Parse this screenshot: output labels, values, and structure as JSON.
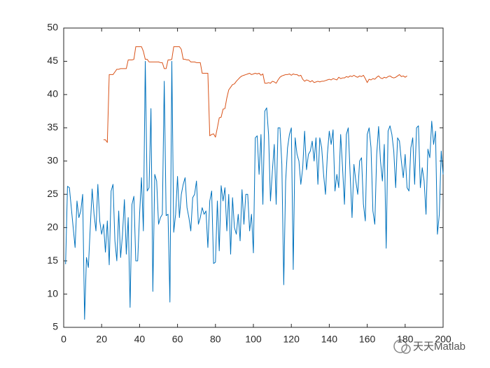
{
  "chart_data": {
    "type": "line",
    "watermark": "天天Matlab",
    "xlim": [
      0,
      200
    ],
    "xticks": [
      0,
      20,
      40,
      60,
      80,
      100,
      120,
      140,
      160,
      180,
      200
    ],
    "ylim": [
      5,
      50
    ],
    "yticks": [
      5,
      10,
      15,
      20,
      25,
      30,
      35,
      40,
      45,
      50
    ],
    "series": [
      {
        "color": "#0072BD",
        "x": [
          1,
          2,
          3,
          4,
          5,
          6,
          7,
          8,
          9,
          10,
          11,
          12,
          13,
          14,
          15,
          16,
          17,
          18,
          19,
          20,
          21,
          22,
          23,
          24,
          25,
          26,
          27,
          28,
          29,
          30,
          31,
          32,
          33,
          34,
          35,
          36,
          37,
          38,
          39,
          40,
          41,
          42,
          43,
          44,
          45,
          46,
          47,
          48,
          49,
          50,
          51,
          52,
          53,
          54,
          55,
          56,
          57,
          58,
          59,
          60,
          61,
          62,
          63,
          64,
          65,
          66,
          67,
          68,
          69,
          70,
          71,
          72,
          73,
          74,
          75,
          76,
          77,
          78,
          79,
          80,
          81,
          82,
          83,
          84,
          85,
          86,
          87,
          88,
          89,
          90,
          91,
          92,
          93,
          94,
          95,
          96,
          97,
          98,
          99,
          100,
          101,
          102,
          103,
          104,
          105,
          106,
          107,
          108,
          109,
          110,
          111,
          112,
          113,
          114,
          115,
          116,
          117,
          118,
          119,
          120,
          121,
          122,
          123,
          124,
          125,
          126,
          127,
          128,
          129,
          130,
          131,
          132,
          133,
          134,
          135,
          136,
          137,
          138,
          139,
          140,
          141,
          142,
          143,
          144,
          145,
          146,
          147,
          148,
          149,
          150,
          151,
          152,
          153,
          154,
          155,
          156,
          157,
          158,
          159,
          160,
          161,
          162,
          163,
          164,
          165,
          166,
          167,
          168,
          169,
          170,
          171,
          172,
          173,
          174,
          175,
          176,
          177,
          178,
          179,
          180,
          181,
          182,
          183,
          184,
          185,
          186,
          187,
          188,
          189,
          190,
          191,
          192,
          193,
          194,
          195,
          196,
          197,
          198,
          199,
          200
        ],
        "values": [
          14.5,
          26.2,
          26,
          23,
          20,
          17,
          24,
          21.5,
          22.5,
          25,
          6.2,
          15.5,
          14,
          20,
          25.8,
          22,
          19.5,
          26.5,
          21,
          19,
          20.5,
          16.3,
          21,
          14.4,
          25.5,
          26.5,
          18,
          15,
          22.5,
          15.5,
          19,
          24.2,
          16,
          21.5,
          8,
          23.5,
          24.7,
          15,
          15,
          22,
          27.5,
          19.5,
          45,
          25.5,
          26,
          37.9,
          10.4,
          28,
          27,
          20.5,
          21.5,
          22,
          42,
          21.8,
          22,
          8.8,
          45,
          19.3,
          22,
          27.7,
          21.5,
          25,
          26.5,
          27.5,
          23,
          21.5,
          19.5,
          24.5,
          25,
          27,
          20.5,
          21.5,
          23,
          22,
          22.5,
          17,
          24,
          25.5,
          14.6,
          14.8,
          24,
          16.5,
          26.3,
          24,
          26,
          19.5,
          25,
          16,
          24.5,
          20,
          19,
          22,
          18,
          25.7,
          20.5,
          25,
          25,
          19.5,
          22,
          16.2,
          33.5,
          33.8,
          28,
          34,
          23.5,
          37.5,
          38,
          34,
          24,
          28.5,
          32.5,
          23.5,
          35,
          35,
          29.5,
          11.4,
          27,
          32,
          34,
          35,
          13.7,
          33.5,
          31,
          30,
          26.5,
          29,
          34.5,
          28.7,
          31,
          31.5,
          33,
          30,
          33.5,
          26.5,
          33.5,
          32,
          28,
          25,
          31,
          34.5,
          32.5,
          34.7,
          25.5,
          28,
          26,
          34,
          29,
          23.5,
          34,
          35,
          28,
          21.5,
          29.5,
          27,
          25,
          30,
          30.5,
          23.5,
          21,
          34,
          35,
          32,
          22.5,
          20.5,
          31,
          35.2,
          30,
          27,
          32.5,
          16.9,
          34.5,
          35.3,
          34,
          31.5,
          26,
          33.5,
          33,
          30,
          27.5,
          31,
          26,
          25.5,
          32,
          33.5,
          26.5,
          35,
          35.3,
          26,
          29,
          27,
          22,
          31.8,
          30.5,
          36,
          32.5,
          34.5,
          19,
          22,
          31.5,
          28
        ]
      },
      {
        "color": "#D95319",
        "x": [
          21,
          22,
          23,
          24,
          25,
          26,
          27,
          28,
          29,
          30,
          31,
          32,
          33,
          34,
          35,
          36,
          37,
          38,
          39,
          40,
          41,
          42,
          43,
          44,
          45,
          46,
          47,
          48,
          49,
          50,
          51,
          52,
          53,
          54,
          55,
          56,
          57,
          58,
          59,
          60,
          61,
          62,
          63,
          64,
          65,
          66,
          67,
          68,
          69,
          70,
          71,
          72,
          73,
          74,
          75,
          76,
          77,
          78,
          79,
          80,
          81,
          82,
          83,
          84,
          85,
          86,
          87,
          88,
          89,
          90,
          91,
          92,
          93,
          94,
          95,
          96,
          97,
          98,
          99,
          100,
          101,
          102,
          103,
          104,
          105,
          106,
          107,
          108,
          109,
          110,
          111,
          112,
          113,
          114,
          115,
          116,
          117,
          118,
          119,
          120,
          121,
          122,
          123,
          124,
          125,
          126,
          127,
          128,
          129,
          130,
          131,
          132,
          133,
          134,
          135,
          136,
          137,
          138,
          139,
          140,
          141,
          142,
          143,
          144,
          145,
          146,
          147,
          148,
          149,
          150,
          151,
          152,
          153,
          154,
          155,
          156,
          157,
          158,
          159,
          160,
          161,
          162,
          163,
          164,
          165,
          166,
          167,
          168,
          169,
          170,
          171,
          172,
          173,
          174,
          175,
          176,
          177,
          178,
          179,
          180,
          181
        ],
        "values": [
          33.2,
          33.2,
          32.8,
          43,
          43,
          43,
          43.4,
          43.8,
          43.8,
          43.9,
          43.9,
          43.9,
          43.9,
          45.2,
          45.2,
          45.2,
          45.3,
          47.2,
          47.2,
          47.2,
          47.2,
          46.5,
          45.3,
          45.3,
          44.9,
          44.9,
          44.9,
          44.9,
          44.9,
          44.9,
          44.8,
          44.8,
          43.9,
          43.9,
          45.2,
          45.2,
          45.3,
          47.2,
          47.2,
          47.2,
          47.2,
          46.8,
          45.3,
          45.3,
          45.2,
          45.2,
          44.9,
          44.9,
          44.9,
          44.8,
          44.8,
          44.8,
          43.2,
          43.2,
          43.2,
          43.2,
          33.8,
          34,
          34.1,
          33.6,
          35,
          36.5,
          36.6,
          37.8,
          37.9,
          39.5,
          40.7,
          41.1,
          41.5,
          41.6,
          42,
          42.3,
          42.6,
          42.8,
          42.9,
          43,
          43.1,
          43.2,
          43,
          43.1,
          43.2,
          43.1,
          43.2,
          42.9,
          43.1,
          41.7,
          41.7,
          41.8,
          41.7,
          42,
          41.9,
          41.7,
          42.2,
          42.6,
          42.8,
          42.9,
          43,
          43,
          43.1,
          42.9,
          43.1,
          43,
          43,
          42.8,
          42.9,
          42.3,
          42,
          42.2,
          42.1,
          41.9,
          42.1,
          41.8,
          41.9,
          42,
          41.9,
          42,
          42,
          42.1,
          42.2,
          42.3,
          42.2,
          42.4,
          42.3,
          42.2,
          42.6,
          42.4,
          42.5,
          42.5,
          42.7,
          42.6,
          42.8,
          42.7,
          42.9,
          42.7,
          42.6,
          42.8,
          42.7,
          42.9,
          42.4,
          41.8,
          42.3,
          42.2,
          42.4,
          42.3,
          42.6,
          42.8,
          42.5,
          42.4,
          42.6,
          42.5,
          42.7,
          42.8,
          42.6,
          42.5,
          42.6,
          42.8,
          43,
          42.7,
          42.8,
          42.6,
          42.8
        ]
      }
    ]
  }
}
